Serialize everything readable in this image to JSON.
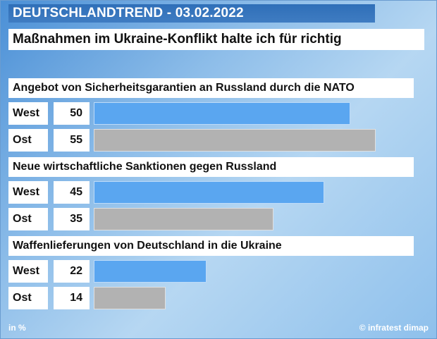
{
  "header": {
    "title": "DEUTSCHLANDTREND - 03.02.2022"
  },
  "subtitle": "Maßnahmen im Ukraine-Konflikt halte ich für richtig",
  "footer": {
    "unit": "in %",
    "source": "© infratest dimap"
  },
  "colors": {
    "west": "#5aa6f0",
    "ost": "#b2b2b2",
    "header": "#2f6fb8"
  },
  "chart_data": {
    "type": "bar",
    "orientation": "horizontal",
    "title": "Maßnahmen im Ukraine-Konflikt halte ich für richtig",
    "unit": "in %",
    "xlim": [
      0,
      60
    ],
    "grid": false,
    "groups": [
      {
        "question": "Angebot von Sicherheitsgarantien an Russland durch die NATO",
        "rows": [
          {
            "label": "West",
            "value": 50
          },
          {
            "label": "Ost",
            "value": 55
          }
        ]
      },
      {
        "question": "Neue wirtschaftliche Sanktionen gegen Russland",
        "rows": [
          {
            "label": "West",
            "value": 45
          },
          {
            "label": "Ost",
            "value": 35
          }
        ]
      },
      {
        "question": "Waffenlieferungen von Deutschland in die Ukraine",
        "rows": [
          {
            "label": "West",
            "value": 22
          },
          {
            "label": "Ost",
            "value": 14
          }
        ]
      }
    ]
  }
}
